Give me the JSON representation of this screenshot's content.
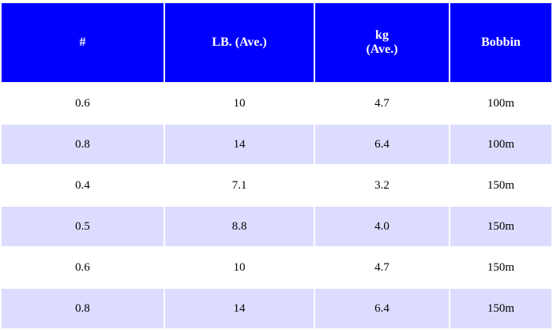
{
  "table": {
    "headers": {
      "col1": "#",
      "col2": "LB. (Ave.)",
      "col3_line1": "kg",
      "col3_line2": "(Ave.)",
      "col4": "Bobbin"
    },
    "rows": [
      [
        "0.6",
        "10",
        "4.7",
        "100m"
      ],
      [
        "0.8",
        "14",
        "6.4",
        "100m"
      ],
      [
        "0.4",
        "7.1",
        "3.2",
        "150m"
      ],
      [
        "0.5",
        "8.8",
        "4.0",
        "150m"
      ],
      [
        "0.6",
        "10",
        "4.7",
        "150m"
      ],
      [
        "0.8",
        "14",
        "6.4",
        "150m"
      ]
    ]
  },
  "colors": {
    "header_bg": "#0000ff",
    "header_text": "#ffffff",
    "row_alt_bg": "#dcdcff",
    "row_bg": "#ffffff"
  }
}
